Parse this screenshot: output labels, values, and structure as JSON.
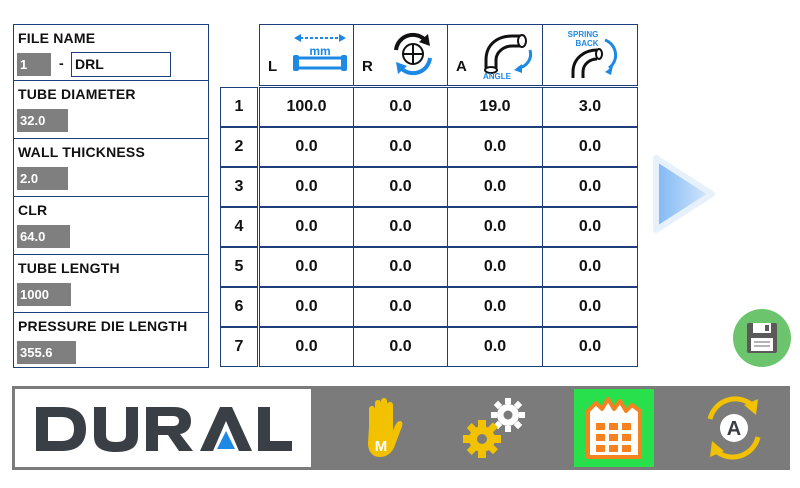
{
  "params": {
    "file_name": {
      "label": "FILE NAME",
      "number": "1",
      "separator": "-",
      "name": "DRL"
    },
    "tube_diameter": {
      "label": "TUBE DIAMETER",
      "value": "32.0"
    },
    "wall_thickness": {
      "label": "WALL THICKNESS",
      "value": "2.0"
    },
    "clr": {
      "label": "CLR",
      "value": "64.0"
    },
    "tube_length": {
      "label": "TUBE LENGTH",
      "value": "1000"
    },
    "pressure_die_length": {
      "label": "PRESSURE DIE LENGTH",
      "value": "355.6"
    }
  },
  "table": {
    "headers": {
      "L": {
        "letter": "L",
        "icon": "length-icon",
        "icon_text": "mm"
      },
      "R": {
        "letter": "R",
        "icon": "rotation-icon"
      },
      "A": {
        "letter": "A",
        "icon": "bend-angle-icon",
        "icon_text": "ANGLE"
      },
      "S": {
        "icon": "spring-back-icon",
        "icon_text_1": "SPRING",
        "icon_text_2": "BACK"
      }
    },
    "rows": [
      {
        "num": "1",
        "L": "100.0",
        "R": "0.0",
        "A": "19.0",
        "S": "3.0"
      },
      {
        "num": "2",
        "L": "0.0",
        "R": "0.0",
        "A": "0.0",
        "S": "0.0"
      },
      {
        "num": "3",
        "L": "0.0",
        "R": "0.0",
        "A": "0.0",
        "S": "0.0"
      },
      {
        "num": "4",
        "L": "0.0",
        "R": "0.0",
        "A": "0.0",
        "S": "0.0"
      },
      {
        "num": "5",
        "L": "0.0",
        "R": "0.0",
        "A": "0.0",
        "S": "0.0"
      },
      {
        "num": "6",
        "L": "0.0",
        "R": "0.0",
        "A": "0.0",
        "S": "0.0"
      },
      {
        "num": "7",
        "L": "0.0",
        "R": "0.0",
        "A": "0.0",
        "S": "0.0"
      }
    ]
  },
  "controls": {
    "next_icon": "play-arrow-icon",
    "save_icon": "floppy-disk-icon"
  },
  "bottom_bar": {
    "logo": "DURAL",
    "buttons": [
      {
        "icon": "manual-hand-icon",
        "label": "M",
        "active": false
      },
      {
        "icon": "settings-gears-icon",
        "active": false
      },
      {
        "icon": "program-table-icon",
        "active": true
      },
      {
        "icon": "auto-cycle-icon",
        "label": "A",
        "active": false
      }
    ]
  },
  "colors": {
    "border": "#1f3f7a",
    "value_box": "#7f7f7f",
    "icon_blue": "#1e88e5",
    "nav_bar": "#7b7b7b",
    "active_nav": "#27e04b",
    "nav_icon_yellow": "#f2c200",
    "save_green": "#6cc56d",
    "logo_dark": "#3a3f46",
    "logo_blue": "#1e88e5"
  }
}
